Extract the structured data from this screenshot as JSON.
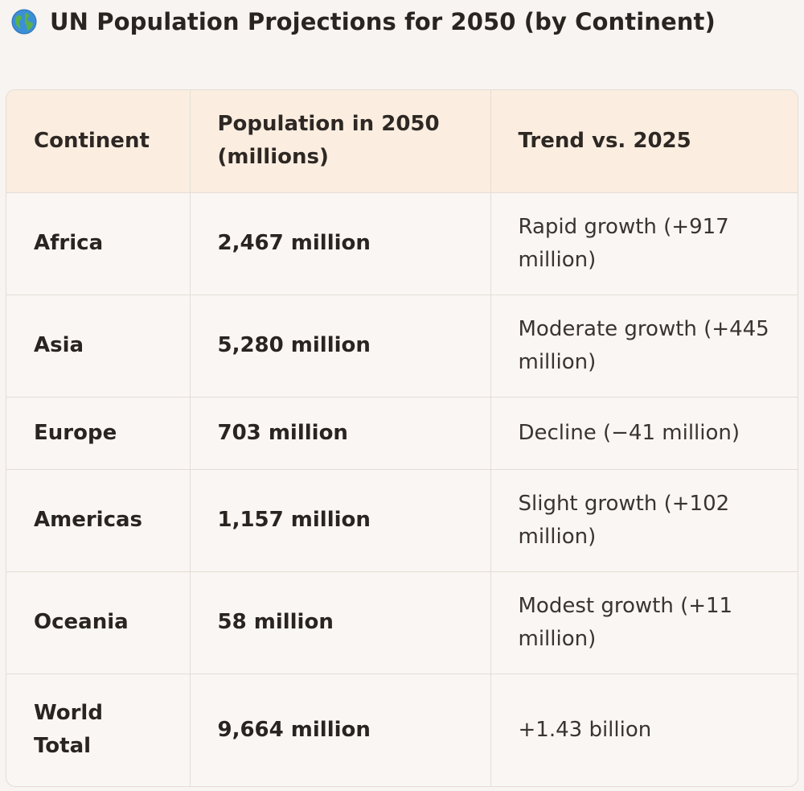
{
  "header": {
    "title": "UN Population Projections for 2050 (by Continent)",
    "icon": "globe-icon"
  },
  "table": {
    "columns": [
      "Continent",
      "Population in 2050 (millions)",
      "Trend vs. 2025"
    ],
    "rows": [
      {
        "continent": "Africa",
        "population": "2,467 million",
        "trend": "Rapid growth (+917 million)"
      },
      {
        "continent": "Asia",
        "population": "5,280 million",
        "trend": "Moderate growth (+445 million)"
      },
      {
        "continent": "Europe",
        "population": "703 million",
        "trend": "Decline (−41 million)"
      },
      {
        "continent": "Americas",
        "population": "1,157 million",
        "trend": "Slight growth (+102 million)"
      },
      {
        "continent": "Oceania",
        "population": "58 million",
        "trend": "Modest growth (+11 million)"
      },
      {
        "continent": "World Total",
        "population": "9,664 million",
        "trend": "+1.43 billion"
      }
    ]
  },
  "colors": {
    "header_bg": "#fbeee1",
    "body_bg": "#f9f6f3",
    "page_bg": "#f7f4f1",
    "border": "#e3ddd6"
  }
}
